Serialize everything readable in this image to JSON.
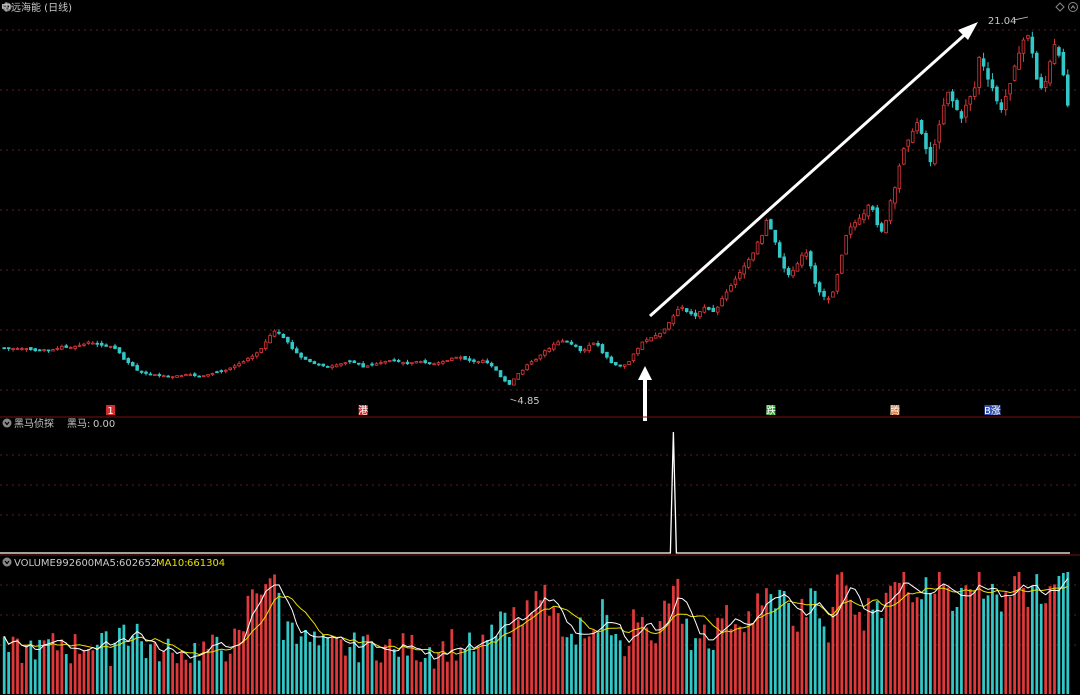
{
  "window": {
    "title": "中远海能 (日线)",
    "icons": [
      "chevron-down-icon",
      "diamond-icon",
      "chevron-up-icon"
    ]
  },
  "price_panel": {
    "high_label": "21.04",
    "low_label": "4.85",
    "markers": [
      {
        "text": "1",
        "color": "#d23030",
        "index": 24
      },
      {
        "text": "港",
        "color": "#d23030",
        "index": 81
      },
      {
        "text": "跌",
        "color": "#3aa83a",
        "index": 173
      },
      {
        "text": "腾",
        "color": "#c86a2a",
        "index": 201
      },
      {
        "text": "B涨",
        "color": "#3350b0",
        "index": 223
      }
    ]
  },
  "indicator_panel": {
    "name": "黑马侦探",
    "field_label": "黑马:",
    "field_value": "0.00"
  },
  "volume_panel": {
    "label": "VOLUME:",
    "value": "992600",
    "ma5_label": "MA5:",
    "ma5_value": "602652",
    "ma10_label": "MA10:",
    "ma10_value": "661304"
  },
  "colors": {
    "up": "#e0393b",
    "down": "#32c8c8",
    "ma5": "#ffffff",
    "ma10": "#e8e000",
    "grid": "#5a1a1a",
    "arrow": "#ffffff"
  },
  "chart_data": {
    "type": "candlestick",
    "series": [
      {
        "name": "price",
        "high": 21.04,
        "low": 4.85,
        "values": [
          6.6,
          6.6,
          6.6,
          6.6,
          6.6,
          6.6,
          6.55,
          6.5,
          6.5,
          6.55,
          6.5,
          6.55,
          6.6,
          6.7,
          6.65,
          6.65,
          6.7,
          6.75,
          6.8,
          6.9,
          6.85,
          6.8,
          6.75,
          6.7,
          6.7,
          6.6,
          6.4,
          6.1,
          5.95,
          5.8,
          5.6,
          5.5,
          5.45,
          5.4,
          5.4,
          5.35,
          5.35,
          5.3,
          5.3,
          5.35,
          5.35,
          5.4,
          5.4,
          5.35,
          5.3,
          5.35,
          5.4,
          5.45,
          5.5,
          5.55,
          5.6,
          5.7,
          5.8,
          5.9,
          6.0,
          6.15,
          6.25,
          6.4,
          6.6,
          6.9,
          7.2,
          7.4,
          7.3,
          7.1,
          6.9,
          6.6,
          6.4,
          6.2,
          6.1,
          6.0,
          5.9,
          5.85,
          5.8,
          5.75,
          5.8,
          5.85,
          5.9,
          5.95,
          6.0,
          5.95,
          5.9,
          5.75,
          5.8,
          5.85,
          5.9,
          5.95,
          6.0,
          6.05,
          6.05,
          6.0,
          5.95,
          5.9,
          5.95,
          6.0,
          6.0,
          5.95,
          5.9,
          5.9,
          5.95,
          6.0,
          6.05,
          6.15,
          6.2,
          6.2,
          6.1,
          6.05,
          6.0,
          6.0,
          6.05,
          5.95,
          5.8,
          5.6,
          5.3,
          5.1,
          4.95,
          5.2,
          5.45,
          5.6,
          5.85,
          6.0,
          6.1,
          6.3,
          6.5,
          6.6,
          6.8,
          6.9,
          6.95,
          6.9,
          6.8,
          6.7,
          6.5,
          6.55,
          6.75,
          6.85,
          6.75,
          6.4,
          6.2,
          5.95,
          5.85,
          5.8,
          5.85,
          6.0,
          6.35,
          6.6,
          6.9,
          7.0,
          7.1,
          7.2,
          7.3,
          7.5,
          7.8,
          8.1,
          8.4,
          8.5,
          8.3,
          8.2,
          8.1,
          8.3,
          8.5,
          8.4,
          8.3,
          8.5,
          8.9,
          9.2,
          9.5,
          9.8,
          10.1,
          10.4,
          10.7,
          11.0,
          11.5,
          11.8,
          12.5,
          12.1,
          11.5,
          10.8,
          10.3,
          10.0,
          10.2,
          10.5,
          10.9,
          11.0,
          10.4,
          9.6,
          9.2,
          9.0,
          8.9,
          9.2,
          10.0,
          10.9,
          11.8,
          12.2,
          12.4,
          12.6,
          12.8,
          13.2,
          13.0,
          12.3,
          12.0,
          12.5,
          13.4,
          14.0,
          15.0,
          15.8,
          16.2,
          16.6,
          17.0,
          16.5,
          15.8,
          15.2,
          16.0,
          16.9,
          17.8,
          18.4,
          18.0,
          17.6,
          17.2,
          17.8,
          18.2,
          18.6,
          20.0,
          19.6,
          19.0,
          18.6,
          18.0,
          17.6,
          18.2,
          18.8,
          19.6,
          20.2,
          20.8,
          21.0,
          20.2,
          19.0,
          18.6,
          18.9,
          19.8,
          20.6,
          20.1,
          19.2,
          17.8
        ]
      }
    ],
    "indicator": {
      "name": "黑马",
      "spike_index": 151,
      "value": 0.0
    },
    "volume": {
      "values": [],
      "ma5": 602652,
      "ma10": 661304,
      "last": 992600
    },
    "ylim": [
      4.85,
      21.04
    ]
  }
}
